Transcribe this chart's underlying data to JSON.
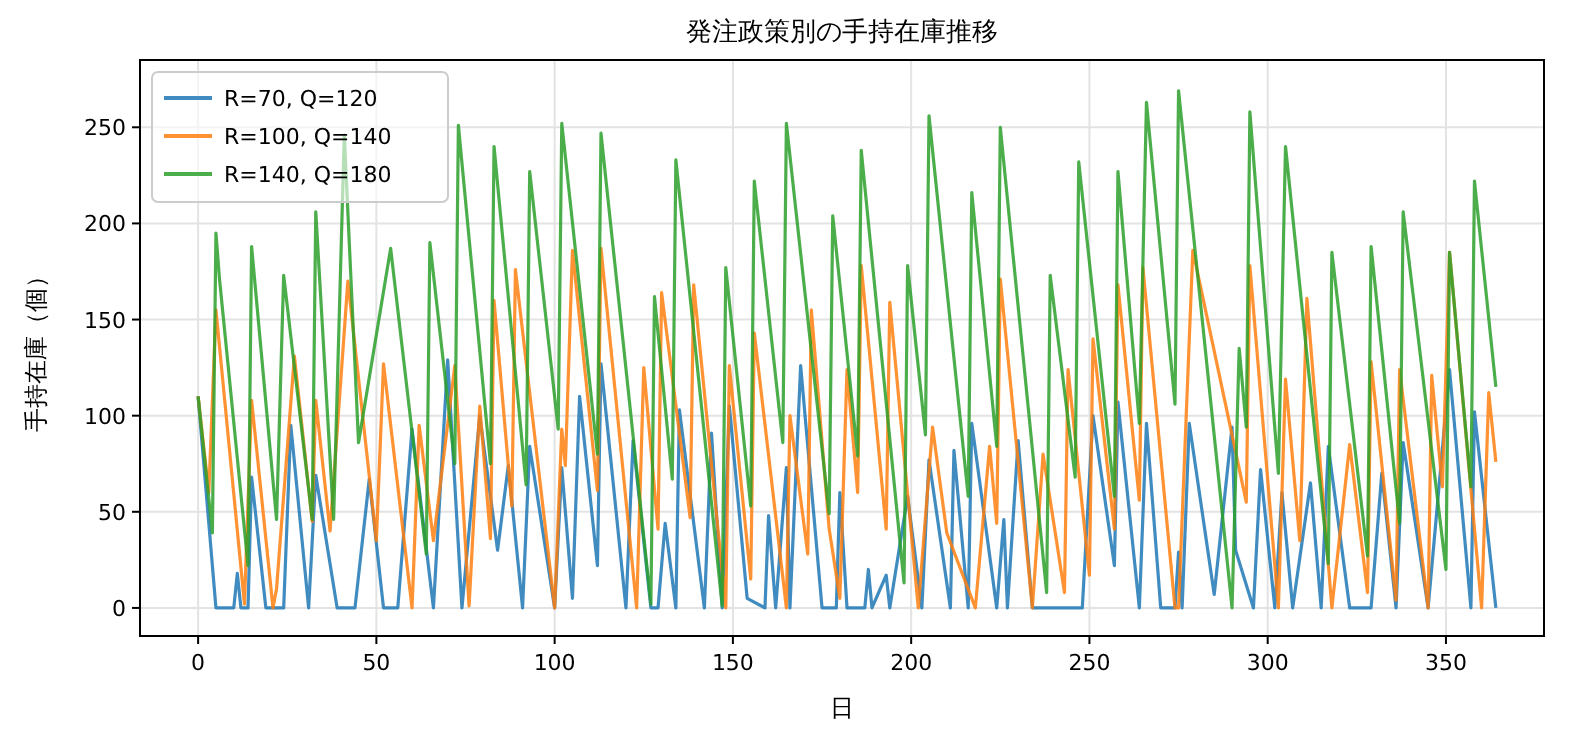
{
  "chart_data": {
    "type": "line",
    "title": "発注政策別の手持在庫推移",
    "xlabel": "日",
    "ylabel": "手持在庫（個）",
    "xlim": [
      -16.3,
      377.5
    ],
    "ylim": [
      -14.6,
      285
    ],
    "xticks": [
      0,
      50,
      100,
      150,
      200,
      250,
      300,
      350
    ],
    "yticks": [
      0,
      50,
      100,
      150,
      200,
      250
    ],
    "grid": true,
    "legend": "top left",
    "line_style": "solid",
    "marker": "none",
    "series": [
      {
        "name": "R=70, Q=120",
        "color": "#1f77b4",
        "x": [
          0,
          5,
          10,
          11,
          12,
          14,
          15,
          19,
          24,
          26,
          31,
          33,
          39,
          44,
          48,
          52,
          56,
          60,
          66,
          70,
          74,
          79,
          84,
          87,
          91,
          93,
          100,
          102,
          105,
          107,
          112,
          113,
          120,
          122,
          127,
          129,
          131,
          134,
          135,
          142,
          144,
          147,
          149,
          154,
          159,
          160,
          162,
          165,
          166,
          169,
          175,
          179,
          180,
          182,
          187,
          188,
          189,
          193,
          194,
          199,
          203,
          205,
          211,
          212,
          216,
          217,
          224,
          226,
          227,
          230,
          234,
          248,
          251,
          257,
          258,
          264,
          266,
          270,
          274,
          275,
          276,
          278,
          285,
          290,
          291,
          296,
          298,
          302,
          304,
          307,
          312,
          315,
          317,
          323,
          329,
          332,
          336,
          338,
          345,
          351,
          357,
          358,
          364
        ],
        "values": [
          110,
          0,
          0,
          18,
          0,
          0,
          68,
          0,
          0,
          95,
          0,
          69,
          0,
          0,
          67,
          0,
          0,
          93,
          0,
          129,
          0,
          100,
          30,
          74,
          0,
          84,
          0,
          73,
          5,
          110,
          22,
          127,
          0,
          87,
          0,
          0,
          44,
          0,
          103,
          0,
          91,
          0,
          105,
          5,
          0,
          48,
          0,
          73,
          0,
          126,
          0,
          0,
          60,
          0,
          0,
          20,
          0,
          17,
          0,
          58,
          0,
          77,
          0,
          82,
          0,
          96,
          0,
          46,
          0,
          87,
          0,
          0,
          100,
          22,
          107,
          0,
          96,
          0,
          0,
          29,
          0,
          96,
          7,
          94,
          30,
          0,
          72,
          0,
          60,
          0,
          65,
          0,
          84,
          0,
          0,
          70,
          0,
          86,
          0,
          124,
          0,
          102,
          0
        ]
      },
      {
        "name": "R=100, Q=140",
        "color": "#ff7f0e",
        "x": [
          0,
          3,
          5,
          13,
          15,
          21,
          22,
          27,
          32,
          33,
          37,
          42,
          50,
          52,
          60,
          62,
          66,
          72,
          76,
          79,
          82,
          83,
          88,
          89,
          100,
          102,
          103,
          105,
          112,
          113,
          123,
          125,
          129,
          130,
          138,
          139,
          148,
          149,
          155,
          156,
          165,
          166,
          171,
          172,
          177,
          180,
          182,
          185,
          186,
          193,
          194,
          202,
          206,
          210,
          218,
          222,
          224,
          225,
          234,
          237,
          243,
          244,
          250,
          251,
          257,
          258,
          264,
          265,
          274,
          275,
          279,
          294,
          295,
          303,
          305,
          309,
          311,
          318,
          323,
          328,
          329,
          336,
          337,
          345,
          346,
          349,
          351,
          360,
          362,
          364
        ],
        "values": [
          110,
          60,
          155,
          2,
          108,
          0,
          10,
          131,
          45,
          108,
          40,
          170,
          35,
          127,
          0,
          95,
          35,
          126,
          1,
          105,
          36,
          160,
          53,
          176,
          0,
          93,
          74,
          186,
          61,
          187,
          0,
          125,
          41,
          164,
          47,
          168,
          0,
          126,
          15,
          143,
          0,
          100,
          28,
          155,
          41,
          5,
          124,
          60,
          178,
          41,
          159,
          0,
          94,
          39,
          0,
          84,
          44,
          171,
          0,
          80,
          8,
          124,
          17,
          140,
          41,
          168,
          56,
          177,
          0,
          0,
          186,
          55,
          178,
          0,
          119,
          35,
          161,
          0,
          85,
          8,
          128,
          4,
          124,
          0,
          121,
          63,
          185,
          0,
          112,
          76
        ]
      },
      {
        "name": "R=140, Q=180",
        "color": "#2ca02c",
        "x": [
          0,
          4,
          5,
          6,
          14,
          15,
          22,
          24,
          32,
          33,
          38,
          41,
          45,
          54,
          64,
          65,
          72,
          73,
          82,
          83,
          92,
          93,
          101,
          102,
          112,
          113,
          127,
          128,
          133,
          134,
          147,
          148,
          155,
          156,
          164,
          165,
          177,
          178,
          185,
          186,
          198,
          199,
          204,
          205,
          216,
          217,
          224,
          225,
          238,
          239,
          246,
          247,
          257,
          258,
          264,
          266,
          274,
          275,
          290,
          292,
          294,
          295,
          303,
          305,
          317,
          318,
          328,
          329,
          337,
          338,
          350,
          351,
          357,
          358,
          364
        ],
        "values": [
          110,
          39,
          195,
          171,
          22,
          188,
          46,
          173,
          46,
          206,
          46,
          246,
          86,
          187,
          28,
          190,
          75,
          251,
          75,
          240,
          64,
          227,
          93,
          252,
          80,
          247,
          2,
          162,
          67,
          233,
          1,
          177,
          53,
          222,
          86,
          252,
          49,
          204,
          79,
          238,
          13,
          178,
          90,
          256,
          58,
          216,
          84,
          250,
          8,
          173,
          68,
          232,
          58,
          227,
          96,
          263,
          106,
          269,
          0,
          135,
          94,
          258,
          70,
          240,
          23,
          185,
          27,
          188,
          44,
          206,
          20,
          185,
          63,
          222,
          115
        ]
      }
    ]
  }
}
